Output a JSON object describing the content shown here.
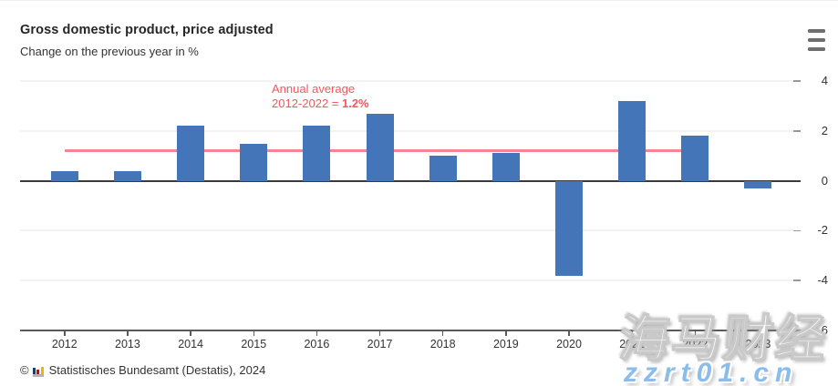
{
  "header": {
    "title": "Gross domestic product, price adjusted",
    "subtitle": "Change on the previous year in %",
    "menu_icon": "hamburger-menu"
  },
  "chart_data": {
    "type": "bar",
    "title": "Gross domestic product, price adjusted",
    "subtitle": "Change on the previous year in %",
    "categories": [
      "2012",
      "2013",
      "2014",
      "2015",
      "2016",
      "2017",
      "2018",
      "2019",
      "2020",
      "2021",
      "2022",
      "2023"
    ],
    "values": [
      0.4,
      0.4,
      2.2,
      1.5,
      2.2,
      2.7,
      1.0,
      1.1,
      -3.8,
      3.2,
      1.8,
      -0.3
    ],
    "xlabel": "",
    "ylabel": "",
    "ylim": [
      -6,
      4
    ],
    "yticks": [
      4,
      2,
      0,
      -2,
      -4,
      -6
    ],
    "grid": true,
    "legend": "none",
    "bar_color": "#4375b8",
    "average_line": {
      "value": 1.2,
      "from_category": "2012",
      "to_category": "2022",
      "color": "#f3707a"
    },
    "annotation": {
      "line1": "Annual average",
      "line2_prefix": "2012-2022 = ",
      "line2_value": "1.2%",
      "color": "#f4575f"
    }
  },
  "footer": {
    "copyright": "©",
    "logo": "destatis-logo",
    "source": "Statistisches Bundesamt (Destatis), 2024"
  },
  "watermark": {
    "line1": "海马财经",
    "line2": "zzrt01.cn",
    "line2_color": "#8cbcea"
  }
}
